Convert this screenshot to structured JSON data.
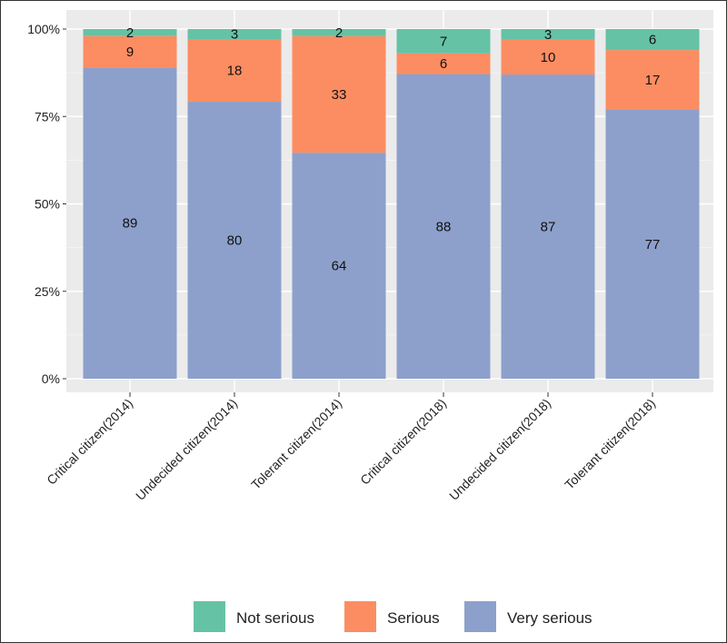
{
  "chart_data": {
    "type": "bar",
    "stacked": true,
    "normalized": true,
    "categories": [
      "Critical citizen(2014)",
      "Undecided citizen(2014)",
      "Tolerant citizen(2014)",
      "Critical citizen(2018)",
      "Undecided citizen(2018)",
      "Tolerant citizen(2018)"
    ],
    "series": [
      {
        "name": "Very serious",
        "color": "#8DA0CB",
        "values": [
          89,
          80,
          64,
          88,
          87,
          77
        ]
      },
      {
        "name": "Serious",
        "color": "#FC8D62",
        "values": [
          9,
          18,
          33,
          6,
          10,
          17
        ]
      },
      {
        "name": "Not serious",
        "color": "#66C2A5",
        "values": [
          2,
          3,
          2,
          7,
          3,
          6
        ]
      }
    ],
    "legend_order": [
      "Not serious",
      "Serious",
      "Very serious"
    ],
    "y_ticks": [
      "0%",
      "25%",
      "50%",
      "75%",
      "100%"
    ],
    "ylim": [
      0,
      1
    ],
    "title": "",
    "xlabel": "",
    "ylabel": "",
    "grid": true,
    "legend_position": "bottom",
    "panel_background": "#EBEBEB"
  }
}
